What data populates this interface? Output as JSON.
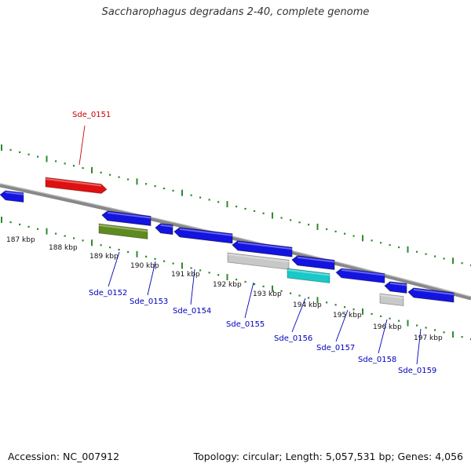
{
  "title": "Saccharophagus degradans 2-40, complete genome",
  "footer": {
    "accession": "Accession: NC_007912",
    "topology": "Topology: circular; Length: 5,057,531 bp; Genes: 4,056"
  },
  "colors": {
    "backbone": "#888888",
    "ticks": "#2e8b2e",
    "label_forward": "#cc0000",
    "label_reverse": "#0000bb",
    "leader": "#0000bb",
    "leader_forward": "#cc0000"
  },
  "scale": {
    "unit": "kbp",
    "labels": [
      "187 kbp",
      "188 kbp",
      "189 kbp",
      "190 kbp",
      "191 kbp",
      "192 kbp",
      "193 kbp",
      "194 kbp",
      "195 kbp",
      "196 kbp",
      "197 kbp"
    ]
  },
  "genes": [
    {
      "label": "Sde_0151",
      "strand": "+",
      "color": "#e01010"
    },
    {
      "label": "Sde_0152",
      "strand": "-",
      "color": "#1414e0"
    },
    {
      "label": "Sde_0153",
      "strand": "-",
      "color": "#1414e0"
    },
    {
      "label": "Sde_0154",
      "strand": "-",
      "color": "#1414e0"
    },
    {
      "label": "Sde_0155",
      "strand": "-",
      "color": "#1414e0"
    },
    {
      "label": "Sde_0156",
      "strand": "-",
      "color": "#1414e0"
    },
    {
      "label": "Sde_0157",
      "strand": "-",
      "color": "#1414e0"
    },
    {
      "label": "Sde_0158",
      "strand": "-",
      "color": "#1414e0"
    },
    {
      "label": "Sde_0159",
      "strand": "-",
      "color": "#1414e0"
    }
  ],
  "features": [
    {
      "kind": "cds",
      "color": "#1414e0"
    },
    {
      "kind": "cds",
      "color": "#5f8a1e"
    },
    {
      "kind": "cds",
      "color": "#1414e0"
    },
    {
      "kind": "cds",
      "color": "#1414e0"
    },
    {
      "kind": "cds",
      "color": "#1414e0"
    },
    {
      "kind": "cds",
      "color": "#c8c8c8"
    },
    {
      "kind": "cds",
      "color": "#1414e0"
    },
    {
      "kind": "cds",
      "color": "#19c8c8"
    },
    {
      "kind": "cds",
      "color": "#1414e0"
    },
    {
      "kind": "cds",
      "color": "#c8c8c8"
    },
    {
      "kind": "cds",
      "color": "#1414e0"
    },
    {
      "kind": "cds",
      "color": "#1414e0"
    }
  ]
}
